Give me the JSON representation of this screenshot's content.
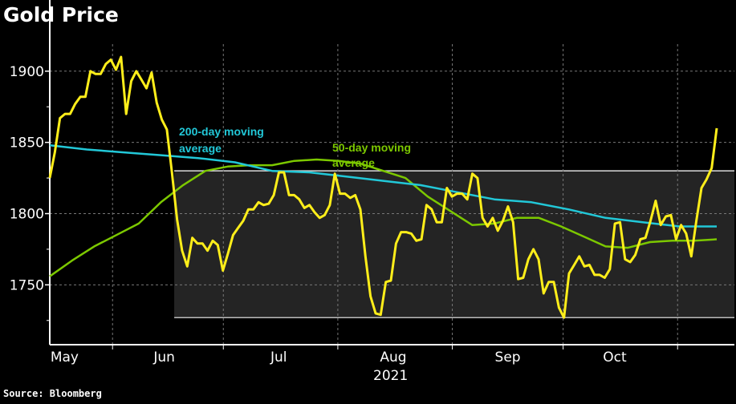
{
  "chart_data": {
    "type": "line",
    "title": "Gold Price",
    "source": "Source: Bloomberg",
    "xlabel": "2021",
    "ylabel": "",
    "x_unit": "days since May 1, 2021",
    "xlim": [
      14,
      194.6
    ],
    "ylim": [
      1708,
      1919
    ],
    "grid": true,
    "y_ticks": [
      1750,
      1800,
      1850,
      1900
    ],
    "y_minor_ticks": [
      1725,
      1775,
      1825,
      1875
    ],
    "x_month_boundaries": [
      31,
      61,
      92,
      123,
      153,
      184
    ],
    "x_tick_labels": [
      {
        "label": "May",
        "day": 18
      },
      {
        "label": "Jun",
        "day": 45
      },
      {
        "label": "Jul",
        "day": 76
      },
      {
        "label": "Aug",
        "day": 107
      },
      {
        "label": "Sep",
        "day": 138
      },
      {
        "label": "Oct",
        "day": 167
      }
    ],
    "range_box": {
      "start_day": 47.7,
      "low": 1727,
      "high": 1830
    },
    "colors": {
      "price": "#ffee1a",
      "ma200": "#22c8d8",
      "ma50": "#7cc800",
      "box": "#242424"
    },
    "series": [
      {
        "name": "Gold price",
        "values": [
          1825,
          1843,
          1867,
          1870,
          1870,
          1877,
          1882,
          1882,
          1900,
          1898,
          1898,
          1905,
          1908,
          1901,
          1910,
          1870,
          1893,
          1900,
          1894,
          1888,
          1899,
          1878,
          1866,
          1859,
          1829,
          1796,
          1774,
          1763,
          1783,
          1779,
          1779,
          1774,
          1781,
          1778,
          1760,
          1772,
          1785,
          1790,
          1795,
          1803,
          1803,
          1808,
          1806,
          1807,
          1813,
          1829,
          1829,
          1813,
          1813,
          1810,
          1804,
          1806,
          1801,
          1797,
          1799,
          1806,
          1828,
          1814,
          1814,
          1811,
          1813,
          1803,
          1770,
          1742,
          1730,
          1729,
          1752,
          1753,
          1779,
          1787,
          1787,
          1786,
          1781,
          1782,
          1806,
          1803,
          1794,
          1794,
          1818,
          1812,
          1814,
          1814,
          1810,
          1828,
          1825,
          1797,
          1791,
          1797,
          1788,
          1795,
          1805,
          1794,
          1754,
          1755,
          1768,
          1775,
          1768,
          1744,
          1752,
          1752,
          1734,
          1727,
          1758,
          1764,
          1770,
          1763,
          1764,
          1757,
          1757,
          1755,
          1761,
          1793,
          1794,
          1768,
          1766,
          1771,
          1782,
          1783,
          1795,
          1809,
          1792,
          1798,
          1799,
          1782,
          1792,
          1786,
          1770,
          1795,
          1818,
          1824,
          1832,
          1860
        ]
      },
      {
        "name": "200-day moving average",
        "values": [
          1848,
          1845,
          1843,
          1841,
          1839,
          1836,
          1830,
          1829,
          1826,
          1823,
          1820,
          1815,
          1810,
          1808,
          1803,
          1797,
          1794,
          1791,
          1791
        ]
      },
      {
        "name": "50-day moving average",
        "values": [
          1756,
          1767,
          1777,
          1785,
          1793,
          1808,
          1820,
          1830,
          1833,
          1834,
          1834,
          1837,
          1838,
          1837,
          1835,
          1830,
          1825,
          1812,
          1802,
          1792,
          1793,
          1797,
          1797,
          1791,
          1784,
          1777,
          1776,
          1780,
          1781,
          1781,
          1782
        ]
      }
    ],
    "annotations": [
      {
        "text_line1": "200-day moving",
        "text_line2": "average",
        "series": "200-day moving average"
      },
      {
        "text_line1": "50-day moving",
        "text_line2": "average",
        "series": "50-day moving average"
      }
    ]
  }
}
